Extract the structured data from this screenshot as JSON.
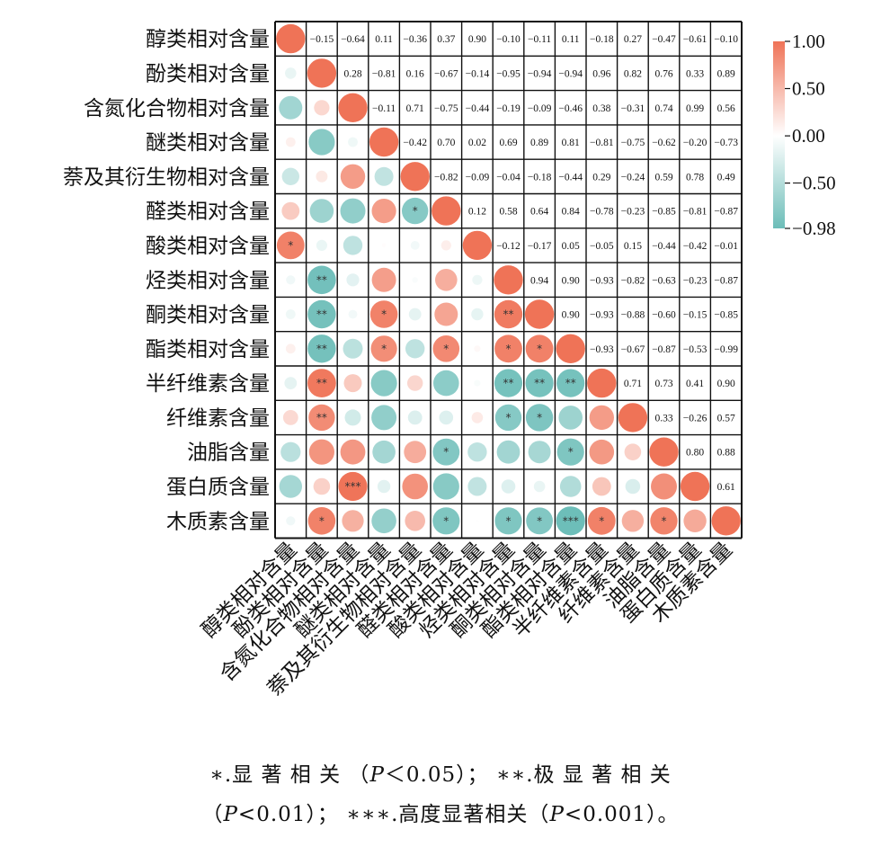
{
  "chart_data": {
    "type": "heatmap",
    "variables": [
      "醇类相对含量",
      "酚类相对含量",
      "含氮化合物相对含量",
      "醚类相对含量",
      "萘及其衍生物相对含量",
      "醛类相对含量",
      "酸类相对含量",
      "烃类相对含量",
      "酮类相对含量",
      "酯类相对含量",
      "半纤维素含量",
      "纤维素含量",
      "油脂含量",
      "蛋白质含量",
      "木质素含量"
    ],
    "upper_triangle": [
      [
        null,
        -0.15,
        -0.64,
        0.11,
        -0.36,
        0.37,
        0.9,
        -0.1,
        -0.11,
        0.11,
        -0.18,
        0.27,
        -0.47,
        -0.61,
        -0.1
      ],
      [
        null,
        null,
        0.28,
        -0.81,
        0.16,
        -0.67,
        -0.14,
        -0.95,
        -0.94,
        -0.94,
        0.96,
        0.82,
        0.76,
        0.33,
        0.89
      ],
      [
        null,
        null,
        null,
        -0.11,
        0.71,
        -0.75,
        -0.44,
        -0.19,
        -0.09,
        -0.46,
        0.38,
        -0.31,
        0.74,
        0.99,
        0.56
      ],
      [
        null,
        null,
        null,
        null,
        -0.42,
        0.7,
        0.02,
        0.69,
        0.89,
        0.81,
        -0.81,
        -0.75,
        -0.62,
        -0.2,
        -0.73
      ],
      [
        null,
        null,
        null,
        null,
        null,
        -0.82,
        -0.09,
        -0.04,
        -0.18,
        -0.44,
        0.29,
        -0.24,
        0.59,
        0.78,
        0.49
      ],
      [
        null,
        null,
        null,
        null,
        null,
        null,
        0.12,
        0.58,
        0.64,
        0.84,
        -0.78,
        -0.23,
        -0.85,
        -0.81,
        -0.87
      ],
      [
        null,
        null,
        null,
        null,
        null,
        null,
        null,
        -0.12,
        -0.17,
        0.05,
        -0.05,
        0.15,
        -0.44,
        -0.42,
        -0.01
      ],
      [
        null,
        null,
        null,
        null,
        null,
        null,
        null,
        null,
        0.94,
        0.9,
        -0.93,
        -0.82,
        -0.63,
        -0.23,
        -0.87
      ],
      [
        null,
        null,
        null,
        null,
        null,
        null,
        null,
        null,
        null,
        0.9,
        -0.93,
        -0.88,
        -0.6,
        -0.15,
        -0.85
      ],
      [
        null,
        null,
        null,
        null,
        null,
        null,
        null,
        null,
        null,
        null,
        -0.93,
        -0.67,
        -0.87,
        -0.53,
        -0.99
      ],
      [
        null,
        null,
        null,
        null,
        null,
        null,
        null,
        null,
        null,
        null,
        null,
        0.71,
        0.73,
        0.41,
        0.9
      ],
      [
        null,
        null,
        null,
        null,
        null,
        null,
        null,
        null,
        null,
        null,
        null,
        null,
        0.33,
        -0.26,
        0.57
      ],
      [
        null,
        null,
        null,
        null,
        null,
        null,
        null,
        null,
        null,
        null,
        null,
        null,
        null,
        0.8,
        0.88
      ],
      [
        null,
        null,
        null,
        null,
        null,
        null,
        null,
        null,
        null,
        null,
        null,
        null,
        null,
        null,
        0.61
      ],
      [
        null,
        null,
        null,
        null,
        null,
        null,
        null,
        null,
        null,
        null,
        null,
        null,
        null,
        null,
        null
      ]
    ],
    "significance": [
      {
        "row": 5,
        "col": 4,
        "mark": "*"
      },
      {
        "row": 6,
        "col": 0,
        "mark": "*"
      },
      {
        "row": 7,
        "col": 1,
        "mark": "**"
      },
      {
        "row": 8,
        "col": 1,
        "mark": "**"
      },
      {
        "row": 8,
        "col": 3,
        "mark": "*"
      },
      {
        "row": 8,
        "col": 7,
        "mark": "**"
      },
      {
        "row": 9,
        "col": 1,
        "mark": "**"
      },
      {
        "row": 9,
        "col": 3,
        "mark": "*"
      },
      {
        "row": 9,
        "col": 5,
        "mark": "*"
      },
      {
        "row": 9,
        "col": 7,
        "mark": "*"
      },
      {
        "row": 9,
        "col": 8,
        "mark": "*"
      },
      {
        "row": 10,
        "col": 1,
        "mark": "**"
      },
      {
        "row": 10,
        "col": 7,
        "mark": "**"
      },
      {
        "row": 10,
        "col": 8,
        "mark": "**"
      },
      {
        "row": 10,
        "col": 9,
        "mark": "**"
      },
      {
        "row": 11,
        "col": 1,
        "mark": "**"
      },
      {
        "row": 11,
        "col": 7,
        "mark": "*"
      },
      {
        "row": 11,
        "col": 8,
        "mark": "*"
      },
      {
        "row": 12,
        "col": 5,
        "mark": "*"
      },
      {
        "row": 12,
        "col": 9,
        "mark": "*"
      },
      {
        "row": 13,
        "col": 2,
        "mark": "***"
      },
      {
        "row": 14,
        "col": 1,
        "mark": "*"
      },
      {
        "row": 14,
        "col": 5,
        "mark": "*"
      },
      {
        "row": 14,
        "col": 7,
        "mark": "*"
      },
      {
        "row": 14,
        "col": 8,
        "mark": "*"
      },
      {
        "row": 14,
        "col": 9,
        "mark": "***"
      },
      {
        "row": 14,
        "col": 10,
        "mark": "*"
      },
      {
        "row": 14,
        "col": 12,
        "mark": "*"
      }
    ],
    "color_scale": {
      "range": [
        -0.98,
        1.0
      ],
      "ticks": [
        "1.00",
        "0.50",
        "0.00",
        "−0.50",
        "−0.98"
      ],
      "tick_values": [
        1.0,
        0.5,
        0.0,
        -0.5,
        -0.98
      ],
      "positive_color": "#ef7357",
      "negative_color": "#6cbdb8",
      "zero_color": "#ffffff"
    }
  },
  "note": {
    "line1": "∗.显 著 相 关 （",
    "line1_p": "P",
    "line1_rest": "＜0.05）； ∗∗.极 显 著 相 关",
    "line2_open": "（",
    "line2_p": "P",
    "line2_rest": "<0.01）； ∗∗∗.高度显著相关（",
    "line2_p2": "P",
    "line2_end": "<0.001）。"
  }
}
